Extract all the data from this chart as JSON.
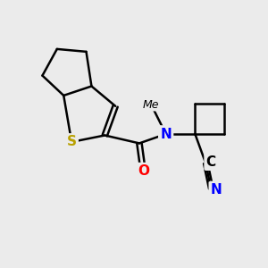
{
  "background_color": "#ebebeb",
  "bond_color": "#000000",
  "bond_width": 1.8,
  "atom_colors": {
    "S": "#b8a000",
    "O": "#ff0000",
    "N": "#0000ff",
    "C": "#000000"
  },
  "font_size": 11,
  "figsize": [
    3.0,
    3.0
  ],
  "dpi": 100
}
